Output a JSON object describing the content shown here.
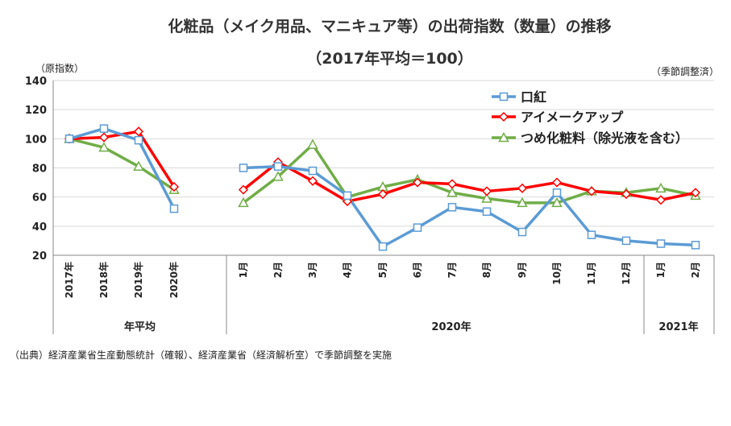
{
  "title_line1": "化粧品（メイク用品、マニキュア等）の出荷指数（数量）の推移",
  "title_line2": "（2017年平均＝100）",
  "y_unit_label": "（原指数）",
  "seasonal_label": "（季節調整済）",
  "source": "（出典）経済産業省生産動態統計（確報）、経済産業省（経済解析室）で季節調整を実施",
  "colors": {
    "lipstick": "#5b9bd5",
    "eye": "#ff0000",
    "nail": "#70ad47",
    "grid": "#d9d9d9",
    "axis": "#888888"
  },
  "chart_data": {
    "type": "line",
    "y_ticks": [
      20,
      40,
      60,
      80,
      100,
      120,
      140
    ],
    "ylim": [
      20,
      140
    ],
    "x_annual": [
      "2017年",
      "2018年",
      "2019年",
      "2020年"
    ],
    "x_monthly": [
      "1月",
      "2月",
      "3月",
      "4月",
      "5月",
      "6月",
      "7月",
      "8月",
      "9月",
      "10月",
      "11月",
      "12月",
      "1月",
      "2月"
    ],
    "group_labels": {
      "annual": "年平均",
      "y2020": "2020年",
      "y2021": "2021年"
    },
    "series": [
      {
        "name": "口紅",
        "key": "lipstick",
        "marker": "square",
        "annual": [
          100,
          107,
          99,
          52
        ],
        "monthly": [
          80,
          81,
          78,
          61,
          26,
          39,
          53,
          50,
          36,
          63,
          34,
          30,
          28,
          27
        ]
      },
      {
        "name": "アイメークアップ",
        "key": "eye",
        "marker": "diamond",
        "annual": [
          100,
          101,
          105,
          67
        ],
        "monthly": [
          65,
          84,
          71,
          57,
          62,
          70,
          69,
          64,
          66,
          70,
          64,
          62,
          58,
          63
        ]
      },
      {
        "name": "つめ化粧料（除光液を含む）",
        "key": "nail",
        "marker": "triangle",
        "annual": [
          100,
          94,
          81,
          65
        ],
        "monthly": [
          56,
          74,
          96,
          60,
          67,
          72,
          63,
          59,
          56,
          56,
          64,
          63,
          66,
          61
        ]
      }
    ]
  }
}
